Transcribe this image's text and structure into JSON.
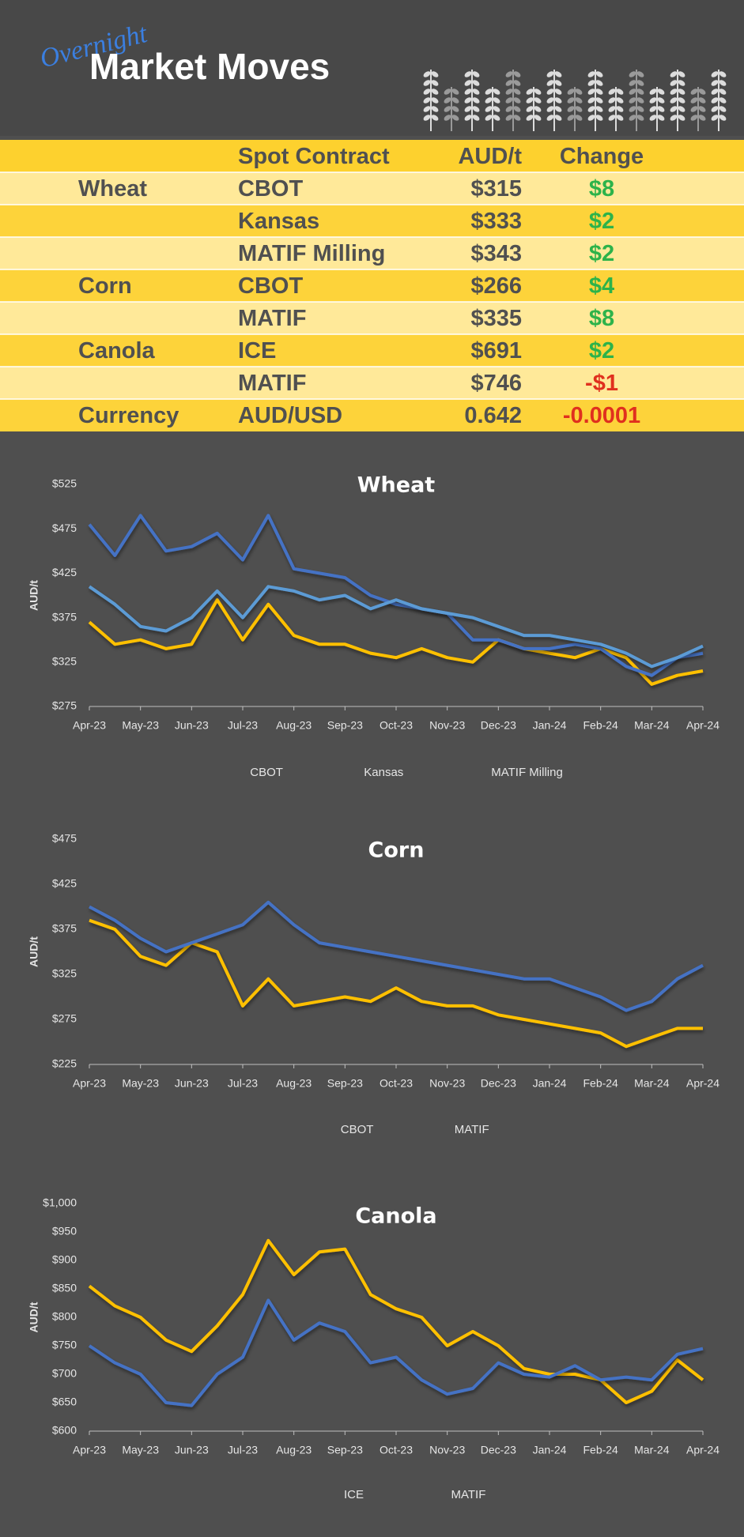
{
  "header": {
    "kicker": "Overnight",
    "title": "Market Moves"
  },
  "table": {
    "columns": [
      "Spot Contract",
      "AUD/t",
      "Change"
    ],
    "header_color": "#fdd12e",
    "row_colors": [
      "#ffe999",
      "#fdd33a"
    ],
    "change_colors": {
      "up": "#2db34a",
      "down": "#e0301e"
    },
    "rows": [
      {
        "group": "Wheat",
        "contract": "CBOT",
        "price": "$315",
        "change": "$8"
      },
      {
        "contract": "Kansas",
        "price": "$333",
        "change": "$2"
      },
      {
        "contract": "MATIF Milling",
        "price": "$343",
        "change": "$2"
      },
      {
        "group": "Corn",
        "contract": "CBOT",
        "price": "$266",
        "change": "$4"
      },
      {
        "contract": "MATIF",
        "price": "$335",
        "change": "$8"
      },
      {
        "group": "Canola",
        "contract": "ICE",
        "price": "$691",
        "change": "$2"
      },
      {
        "contract": "MATIF",
        "price": "$746",
        "change": "-$1"
      },
      {
        "group": "Currency",
        "contract": "AUD/USD",
        "price": "0.642",
        "change": "-0.0001"
      }
    ]
  },
  "chart_data": [
    {
      "type": "line",
      "title": "Wheat",
      "y_label": "AUD/t",
      "categories": [
        "Apr-23",
        null,
        "May-23",
        null,
        "Jun-23",
        null,
        "Jul-23",
        null,
        "Aug-23",
        null,
        "Sep-23",
        null,
        "Oct-23",
        null,
        "Nov-23",
        null,
        "Dec-23",
        null,
        "Jan-24",
        null,
        "Feb-24",
        null,
        "Mar-24",
        null,
        "Apr-24"
      ],
      "ylim": [
        275,
        525
      ],
      "yticks": [
        {
          "value": 275,
          "label": "$275"
        },
        {
          "value": 325,
          "label": "$325"
        },
        {
          "value": 375,
          "label": "$375"
        },
        {
          "value": 425,
          "label": "$425"
        },
        {
          "value": 475,
          "label": "$475"
        },
        {
          "value": 525,
          "label": "$525"
        }
      ],
      "grid": false,
      "legend": "bottom",
      "series": [
        {
          "name": "CBOT",
          "color": "#ffc000",
          "values": [
            370,
            345,
            350,
            340,
            345,
            395,
            350,
            390,
            355,
            345,
            345,
            335,
            330,
            340,
            330,
            325,
            350,
            340,
            335,
            330,
            340,
            330,
            300,
            310,
            315
          ]
        },
        {
          "name": "Kansas",
          "color": "#4472c4",
          "values": [
            480,
            445,
            490,
            450,
            455,
            470,
            440,
            490,
            430,
            425,
            420,
            400,
            390,
            385,
            380,
            350,
            350,
            340,
            340,
            345,
            340,
            320,
            310,
            330,
            335
          ]
        },
        {
          "name": "MATIF Milling",
          "color": "#5b9bd5",
          "values": [
            410,
            390,
            365,
            360,
            375,
            405,
            375,
            410,
            405,
            395,
            400,
            385,
            395,
            385,
            380,
            375,
            365,
            355,
            355,
            350,
            345,
            335,
            320,
            330,
            343
          ]
        }
      ]
    },
    {
      "type": "line",
      "title": "Corn",
      "y_label": "AUD/t",
      "categories": [
        "Apr-23",
        null,
        "May-23",
        null,
        "Jun-23",
        null,
        "Jul-23",
        null,
        "Aug-23",
        null,
        "Sep-23",
        null,
        "Oct-23",
        null,
        "Nov-23",
        null,
        "Dec-23",
        null,
        "Jan-24",
        null,
        "Feb-24",
        null,
        "Mar-24",
        null,
        "Apr-24"
      ],
      "ylim": [
        225,
        475
      ],
      "yticks": [
        {
          "value": 225,
          "label": "$225"
        },
        {
          "value": 275,
          "label": "$275"
        },
        {
          "value": 325,
          "label": "$325"
        },
        {
          "value": 375,
          "label": "$375"
        },
        {
          "value": 425,
          "label": "$425"
        },
        {
          "value": 475,
          "label": "$475"
        }
      ],
      "grid": false,
      "legend": "bottom",
      "series": [
        {
          "name": "CBOT",
          "color": "#ffc000",
          "values": [
            385,
            375,
            345,
            335,
            360,
            350,
            290,
            320,
            290,
            295,
            300,
            295,
            310,
            295,
            290,
            290,
            280,
            275,
            270,
            265,
            260,
            245,
            255,
            265,
            265
          ]
        },
        {
          "name": "MATIF",
          "color": "#4472c4",
          "values": [
            400,
            385,
            365,
            350,
            360,
            370,
            380,
            405,
            380,
            360,
            355,
            350,
            345,
            340,
            335,
            330,
            325,
            320,
            320,
            310,
            300,
            285,
            295,
            320,
            335
          ]
        }
      ]
    },
    {
      "type": "line",
      "title": "Canola",
      "y_label": "AUD/t",
      "categories": [
        "Apr-23",
        null,
        "May-23",
        null,
        "Jun-23",
        null,
        "Jul-23",
        null,
        "Aug-23",
        null,
        "Sep-23",
        null,
        "Oct-23",
        null,
        "Nov-23",
        null,
        "Dec-23",
        null,
        "Jan-24",
        null,
        "Feb-24",
        null,
        "Mar-24",
        null,
        "Apr-24"
      ],
      "ylim": [
        600,
        1000
      ],
      "yticks": [
        {
          "value": 600,
          "label": "$600"
        },
        {
          "value": 650,
          "label": "$650"
        },
        {
          "value": 700,
          "label": "$700"
        },
        {
          "value": 750,
          "label": "$750"
        },
        {
          "value": 800,
          "label": "$800"
        },
        {
          "value": 850,
          "label": "$850"
        },
        {
          "value": 900,
          "label": "$900"
        },
        {
          "value": 950,
          "label": "$950"
        },
        {
          "value": 1000,
          "label": "$1,000"
        }
      ],
      "grid": false,
      "legend": "bottom",
      "series": [
        {
          "name": "ICE",
          "color": "#ffc000",
          "values": [
            855,
            820,
            800,
            760,
            740,
            785,
            840,
            935,
            875,
            915,
            920,
            840,
            815,
            800,
            750,
            775,
            750,
            710,
            700,
            700,
            690,
            650,
            670,
            725,
            690
          ]
        },
        {
          "name": "MATIF",
          "color": "#4472c4",
          "values": [
            750,
            720,
            700,
            650,
            645,
            700,
            730,
            830,
            760,
            790,
            775,
            720,
            730,
            690,
            665,
            675,
            720,
            700,
            695,
            715,
            690,
            695,
            690,
            735,
            745
          ]
        }
      ]
    }
  ]
}
